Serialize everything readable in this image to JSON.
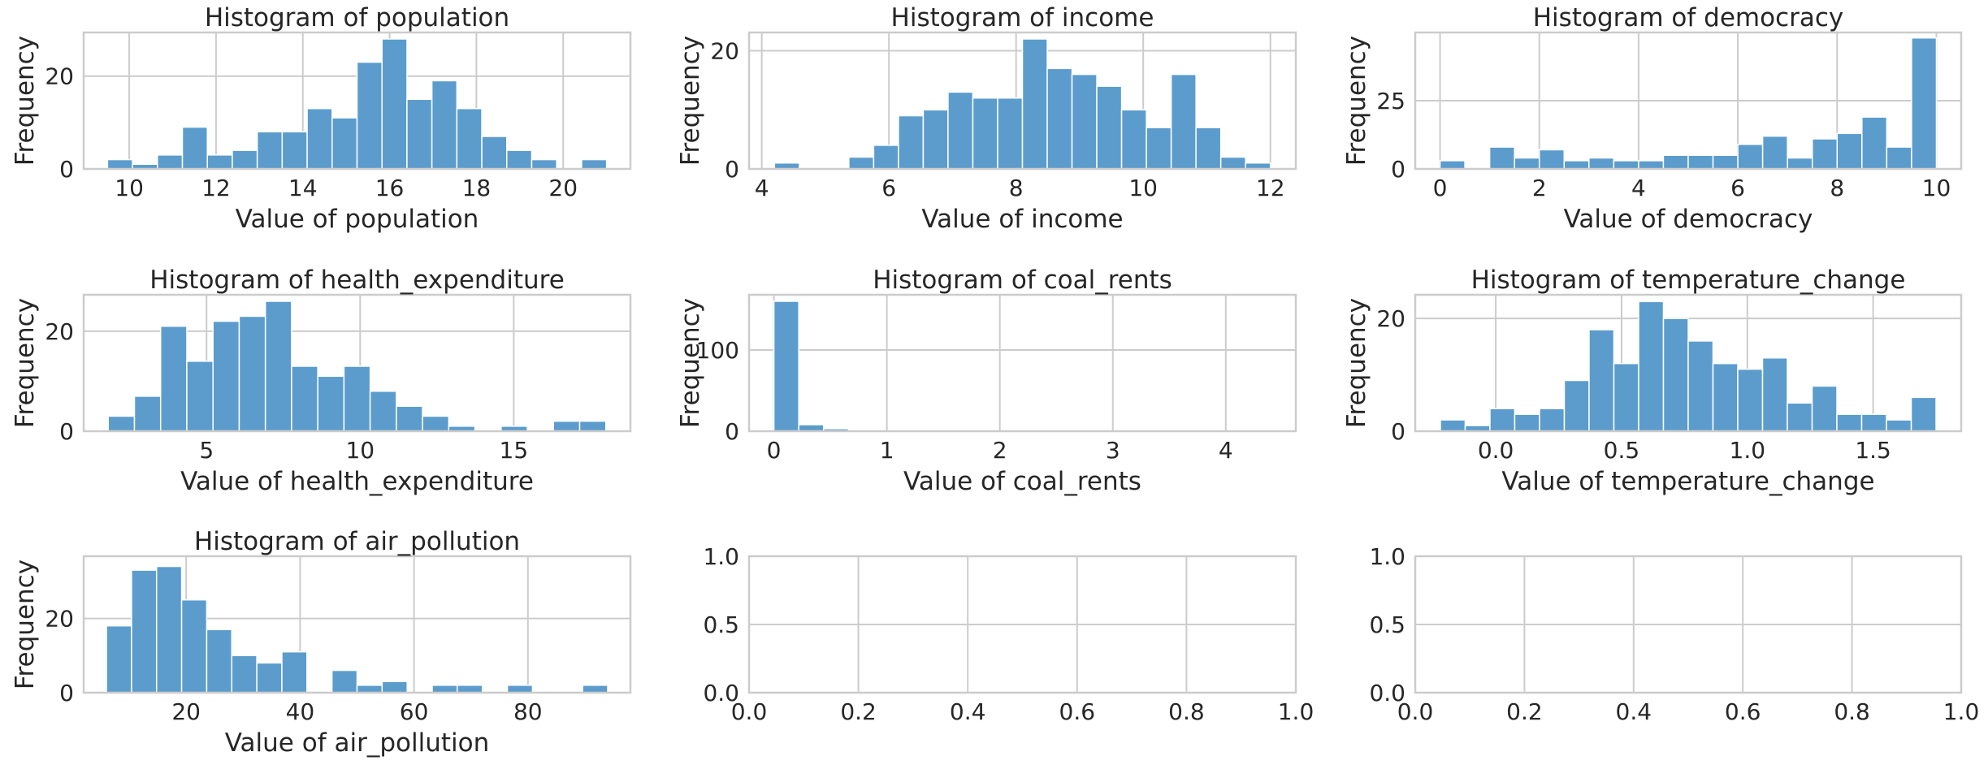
{
  "colors": {
    "bar": "#5b9ccd",
    "bar_edge": "#ffffff",
    "grid": "#cccccc",
    "spine": "#cccccc",
    "text": "#262626"
  },
  "chart_data": [
    {
      "type": "bar",
      "title": "Histogram of population",
      "xlabel": "Value of population",
      "ylabel": "Frequency",
      "xlim": [
        8.95,
        21.55
      ],
      "ylim": [
        0,
        29.4
      ],
      "xticks": [
        10,
        12,
        14,
        16,
        18,
        20
      ],
      "xtick_labels": [
        "10",
        "12",
        "14",
        "16",
        "18",
        "20"
      ],
      "yticks": [
        0,
        20
      ],
      "ytick_labels": [
        "0",
        "20"
      ],
      "bin_range": [
        9.5,
        21.0
      ],
      "counts": [
        2,
        1,
        3,
        9,
        3,
        4,
        8,
        8,
        13,
        11,
        23,
        28,
        15,
        19,
        13,
        7,
        4,
        2,
        0,
        2
      ]
    },
    {
      "type": "bar",
      "title": "Histogram of income",
      "xlabel": "Value of income",
      "ylabel": "Frequency",
      "xlim": [
        3.8,
        12.4
      ],
      "ylim": [
        0,
        23.1
      ],
      "xticks": [
        4,
        6,
        8,
        10,
        12
      ],
      "xtick_labels": [
        "4",
        "6",
        "8",
        "10",
        "12"
      ],
      "yticks": [
        0,
        20
      ],
      "ytick_labels": [
        "0",
        "20"
      ],
      "bin_range": [
        4.2,
        12.0
      ],
      "counts": [
        1,
        0,
        0,
        2,
        4,
        9,
        10,
        13,
        12,
        12,
        22,
        17,
        16,
        14,
        10,
        7,
        16,
        7,
        2,
        1
      ]
    },
    {
      "type": "bar",
      "title": "Histogram of democracy",
      "xlabel": "Value of democracy",
      "ylabel": "Frequency",
      "xlim": [
        -0.5,
        10.5
      ],
      "ylim": [
        0,
        50
      ],
      "xticks": [
        0,
        2,
        4,
        6,
        8,
        10
      ],
      "xtick_labels": [
        "0",
        "2",
        "4",
        "6",
        "8",
        "10"
      ],
      "yticks": [
        0,
        25
      ],
      "ytick_labels": [
        "0",
        "25"
      ],
      "bin_range": [
        0,
        10
      ],
      "counts": [
        3,
        0,
        8,
        4,
        7,
        3,
        4,
        3,
        3,
        5,
        5,
        5,
        9,
        12,
        4,
        11,
        13,
        19,
        8,
        48
      ]
    },
    {
      "type": "bar",
      "title": "Histogram of health_expenditure",
      "xlabel": "Value of health_expenditure",
      "ylabel": "Frequency",
      "xlim": [
        1.0,
        18.8
      ],
      "ylim": [
        0,
        27.3
      ],
      "xticks": [
        5,
        10,
        15
      ],
      "xtick_labels": [
        "5",
        "10",
        "15"
      ],
      "yticks": [
        0,
        20
      ],
      "ytick_labels": [
        "0",
        "20"
      ],
      "bin_range": [
        1.8,
        18.0
      ],
      "counts": [
        3,
        7,
        21,
        14,
        22,
        23,
        26,
        13,
        11,
        13,
        8,
        5,
        3,
        1,
        0,
        1,
        0,
        2,
        2
      ]
    },
    {
      "type": "bar",
      "title": "Histogram of coal_rents",
      "xlabel": "Value of coal_rents",
      "ylabel": "Frequency",
      "xlim": [
        -0.22,
        4.62
      ],
      "ylim": [
        0,
        168
      ],
      "xticks": [
        0,
        1,
        2,
        3,
        4
      ],
      "xtick_labels": [
        "0",
        "1",
        "2",
        "3",
        "4"
      ],
      "yticks": [
        0,
        100
      ],
      "ytick_labels": [
        "0",
        "100"
      ],
      "bin_range": [
        0,
        4.4
      ],
      "counts": [
        160,
        8,
        3,
        0,
        0,
        0,
        0,
        0,
        0,
        0,
        0,
        0,
        0,
        0,
        0,
        0,
        0,
        0,
        0,
        1
      ]
    },
    {
      "type": "bar",
      "title": "Histogram of temperature_change",
      "xlabel": "Value of temperature_change",
      "ylabel": "Frequency",
      "xlim": [
        -0.32,
        1.85
      ],
      "ylim": [
        0,
        24.2
      ],
      "xticks": [
        0.0,
        0.5,
        1.0,
        1.5
      ],
      "xtick_labels": [
        "0.0",
        "0.5",
        "1.0",
        "1.5"
      ],
      "yticks": [
        0,
        20
      ],
      "ytick_labels": [
        "0",
        "20"
      ],
      "bin_range": [
        -0.22,
        1.75
      ],
      "counts": [
        2,
        1,
        4,
        3,
        4,
        9,
        18,
        12,
        23,
        20,
        16,
        12,
        11,
        13,
        5,
        8,
        3,
        3,
        2,
        6
      ]
    },
    {
      "type": "bar",
      "title": "Histogram of air_pollution",
      "xlabel": "Value of air_pollution",
      "ylabel": "Frequency",
      "xlim": [
        2.0,
        98.0
      ],
      "ylim": [
        0,
        36.75
      ],
      "xticks": [
        20,
        40,
        60,
        80
      ],
      "xtick_labels": [
        "20",
        "40",
        "60",
        "80"
      ],
      "yticks": [
        0,
        20
      ],
      "ytick_labels": [
        "0",
        "20"
      ],
      "bin_range": [
        6.0,
        94.0
      ],
      "counts": [
        18,
        33,
        34,
        25,
        17,
        10,
        8,
        11,
        0,
        6,
        2,
        3,
        0,
        2,
        2,
        0,
        2,
        0,
        0,
        2
      ]
    },
    {
      "type": "bar",
      "title": "",
      "xlabel": "",
      "ylabel": "",
      "xlim": [
        0.0,
        1.0
      ],
      "ylim": [
        0.0,
        1.0
      ],
      "xticks": [
        0.0,
        0.2,
        0.4,
        0.6,
        0.8,
        1.0
      ],
      "xtick_labels": [
        "0.0",
        "0.2",
        "0.4",
        "0.6",
        "0.8",
        "1.0"
      ],
      "yticks": [
        0.0,
        0.5,
        1.0
      ],
      "ytick_labels": [
        "0.0",
        "0.5",
        "1.0"
      ],
      "bin_range": [
        0,
        1
      ],
      "counts": []
    },
    {
      "type": "bar",
      "title": "",
      "xlabel": "",
      "ylabel": "",
      "xlim": [
        0.0,
        1.0
      ],
      "ylim": [
        0.0,
        1.0
      ],
      "xticks": [
        0.0,
        0.2,
        0.4,
        0.6,
        0.8,
        1.0
      ],
      "xtick_labels": [
        "0.0",
        "0.2",
        "0.4",
        "0.6",
        "0.8",
        "1.0"
      ],
      "yticks": [
        0.0,
        0.5,
        1.0
      ],
      "ytick_labels": [
        "0.0",
        "0.5",
        "1.0"
      ],
      "bin_range": [
        0,
        1
      ],
      "counts": []
    }
  ]
}
